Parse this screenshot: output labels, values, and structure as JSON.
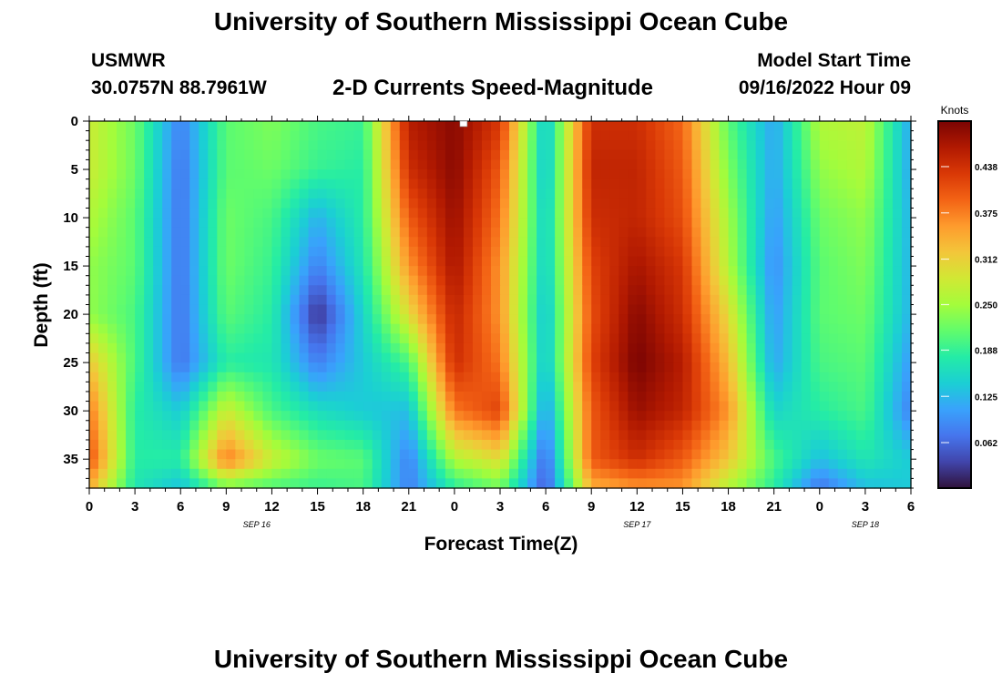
{
  "page": {
    "title": "University of Southern Mississippi Ocean Cube",
    "bottom_title": "University of Southern Mississippi Ocean Cube",
    "station_id": "USMWR",
    "station_coords": "30.0757N  88.7961W",
    "plot_title": "2-D Currents Speed-Magnitude",
    "model_start_label": "Model Start Time",
    "model_start_value": "09/16/2022 Hour 09"
  },
  "colors": {
    "colormap": [
      "#30123b",
      "#4145ab",
      "#4675ed",
      "#39a2fc",
      "#1bcfd4",
      "#24eca6",
      "#61fc6c",
      "#a4fc3b",
      "#d1e834",
      "#f3c63a",
      "#fe9b2d",
      "#f36315",
      "#d93806",
      "#b11901",
      "#7a0403"
    ]
  },
  "chart_data": {
    "type": "heatmap",
    "title": "2-D Currents Speed-Magnitude",
    "xlabel": "Forecast Time(Z)",
    "ylabel": "Depth (ft)",
    "x_ticks": [
      "0",
      "3",
      "6",
      "9",
      "12",
      "15",
      "18",
      "21",
      "0",
      "3",
      "6",
      "9",
      "12",
      "15",
      "18",
      "21",
      "0",
      "3",
      "6"
    ],
    "x_range_hours": [
      0,
      54
    ],
    "date_labels": [
      {
        "label": "SEP 16",
        "hour": 11
      },
      {
        "label": "SEP 17",
        "hour": 36
      },
      {
        "label": "SEP 18",
        "hour": 51
      }
    ],
    "y_ticks": [
      0,
      5,
      10,
      15,
      20,
      25,
      30,
      35
    ],
    "ylim": [
      0,
      38
    ],
    "y_inverted": true,
    "colorbar": {
      "label": "Knots",
      "ticks": [
        "0.438",
        "0.375",
        "0.312",
        "0.250",
        "0.188",
        "0.125",
        "0.062"
      ],
      "tick_values": [
        0.438,
        0.375,
        0.312,
        0.25,
        0.188,
        0.125,
        0.062
      ],
      "range": [
        0,
        0.5
      ]
    },
    "x_hours": [
      0,
      3,
      6,
      9,
      12,
      15,
      18,
      21,
      24,
      27,
      30,
      33,
      36,
      39,
      42,
      45,
      48,
      51,
      54
    ],
    "depths_ft": [
      0,
      5,
      10,
      15,
      20,
      25,
      30,
      35,
      38
    ],
    "speed_knots": [
      [
        0.28,
        0.22,
        0.08,
        0.21,
        0.23,
        0.2,
        0.19,
        0.46,
        0.49,
        0.43,
        0.13,
        0.44,
        0.44,
        0.39,
        0.21,
        0.11,
        0.26,
        0.27,
        0.11
      ],
      [
        0.28,
        0.22,
        0.07,
        0.21,
        0.22,
        0.19,
        0.18,
        0.44,
        0.49,
        0.4,
        0.13,
        0.45,
        0.45,
        0.4,
        0.23,
        0.11,
        0.24,
        0.26,
        0.11
      ],
      [
        0.26,
        0.21,
        0.07,
        0.22,
        0.2,
        0.12,
        0.18,
        0.4,
        0.48,
        0.38,
        0.14,
        0.44,
        0.45,
        0.41,
        0.25,
        0.1,
        0.22,
        0.24,
        0.12
      ],
      [
        0.24,
        0.21,
        0.07,
        0.22,
        0.19,
        0.08,
        0.17,
        0.36,
        0.47,
        0.36,
        0.14,
        0.42,
        0.47,
        0.43,
        0.26,
        0.09,
        0.21,
        0.23,
        0.12
      ],
      [
        0.24,
        0.2,
        0.07,
        0.21,
        0.18,
        0.02,
        0.15,
        0.3,
        0.45,
        0.36,
        0.13,
        0.41,
        0.49,
        0.44,
        0.3,
        0.1,
        0.21,
        0.22,
        0.12
      ],
      [
        0.32,
        0.2,
        0.07,
        0.18,
        0.17,
        0.08,
        0.14,
        0.2,
        0.44,
        0.38,
        0.13,
        0.42,
        0.5,
        0.46,
        0.33,
        0.11,
        0.2,
        0.21,
        0.1
      ],
      [
        0.38,
        0.18,
        0.14,
        0.28,
        0.2,
        0.16,
        0.14,
        0.13,
        0.38,
        0.42,
        0.1,
        0.4,
        0.48,
        0.45,
        0.36,
        0.15,
        0.18,
        0.2,
        0.08
      ],
      [
        0.41,
        0.18,
        0.18,
        0.38,
        0.28,
        0.22,
        0.21,
        0.08,
        0.26,
        0.3,
        0.06,
        0.4,
        0.44,
        0.4,
        0.32,
        0.2,
        0.13,
        0.17,
        0.14
      ],
      [
        0.34,
        0.17,
        0.13,
        0.22,
        0.2,
        0.19,
        0.2,
        0.08,
        0.18,
        0.22,
        0.05,
        0.34,
        0.36,
        0.36,
        0.26,
        0.18,
        0.07,
        0.13,
        0.14
      ]
    ]
  }
}
